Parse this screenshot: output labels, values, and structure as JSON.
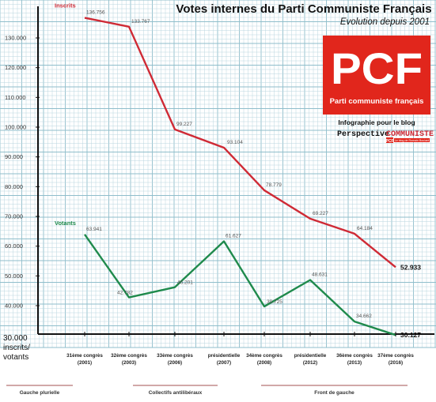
{
  "chart_data": {
    "type": "line",
    "title": "Votes internes du Parti Communiste Français",
    "subtitle": "Evolution depuis 2001",
    "categories": [
      [
        "31ème congrès",
        "(2001)"
      ],
      [
        "32ème congrès",
        "(2003)"
      ],
      [
        "33ème congrès",
        "(2006)"
      ],
      [
        "présidentielle",
        "(2007)"
      ],
      [
        "34ème congrès",
        "(2008)"
      ],
      [
        "présidentielle",
        "(2012)"
      ],
      [
        "36ème congrès",
        "(2013)"
      ],
      [
        "37ème congrès",
        "(2016)"
      ]
    ],
    "series": [
      {
        "name": "Inscrits",
        "color": "#cf2a35",
        "values": [
          136756,
          133767,
          99227,
          93104,
          78779,
          69227,
          64184,
          52933
        ],
        "labels": [
          "136.756",
          "133.767",
          "99.227",
          "93.104",
          "78.779",
          "69.227",
          "64.184",
          "52.933"
        ]
      },
      {
        "name": "Votants",
        "color": "#1f8a4c",
        "values": [
          63941,
          42782,
          46201,
          61627,
          39725,
          48631,
          34662,
          30127
        ],
        "labels": [
          "63.941",
          "42.782",
          "46.201",
          "61.627",
          "39.725",
          "48.631",
          "34.662",
          "30.127"
        ]
      }
    ],
    "yticks": [
      "130.000",
      "120.000",
      "110.000",
      "100.000",
      "90.000",
      "80.000",
      "70.000",
      "60.000",
      "50.000",
      "40.000"
    ],
    "ytick_values": [
      130000,
      120000,
      110000,
      100000,
      90000,
      80000,
      70000,
      60000,
      50000,
      40000
    ],
    "ylim": [
      30000,
      140000
    ],
    "y_axis_note": [
      "30.000",
      "inscrits/",
      "votants"
    ],
    "periods": [
      "Gauche plurielle",
      "Collectifs antilibéraux",
      "Front de gauche"
    ],
    "grid": true,
    "legend": "inline"
  },
  "logo": {
    "text": "PCF",
    "tagline": "Parti communiste français",
    "colors": {
      "red": "#e1261c",
      "white": "#ffffff"
    }
  },
  "credit": {
    "line1": "Infographie pour le blog",
    "blog_part1": "Perspective",
    "blog_part2": "COMMUNISTE",
    "mini_logo": "PCF",
    "mini_tagline": "Le blog de Romain Boulard"
  },
  "colors": {
    "axis": "#111111",
    "grid_minor": "#b9d6df",
    "grid_major": "#8fbecb",
    "period_underline": "#a35252"
  }
}
